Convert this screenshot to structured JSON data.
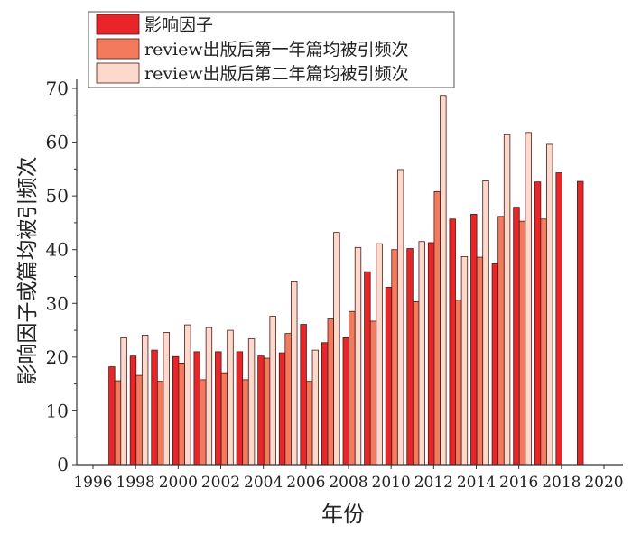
{
  "chart_data": {
    "type": "bar",
    "title": "",
    "xlabel": "年份",
    "ylabel": "影响因子或篇均被引频次",
    "xlim": [
      1996,
      2020
    ],
    "ylim": [
      0,
      70
    ],
    "xticks": [
      1996,
      1998,
      2000,
      2002,
      2004,
      2006,
      2008,
      2010,
      2012,
      2014,
      2016,
      2018,
      2020
    ],
    "yticks": [
      0,
      10,
      20,
      30,
      40,
      50,
      60,
      70
    ],
    "grid": false,
    "legend_position": "top-left",
    "x": [
      1997,
      1998,
      1999,
      2000,
      2001,
      2002,
      2003,
      2004,
      2005,
      2006,
      2007,
      2008,
      2009,
      2010,
      2011,
      2012,
      2013,
      2014,
      2015,
      2016,
      2017,
      2018,
      2019
    ],
    "series": [
      {
        "name": "影响因子",
        "color": "#e8262a",
        "values": [
          18.2,
          20.2,
          21.3,
          20.1,
          21.0,
          21.0,
          21.0,
          20.2,
          20.8,
          26.1,
          22.7,
          23.6,
          35.9,
          33.0,
          40.2,
          41.3,
          45.7,
          46.6,
          37.4,
          47.9,
          52.6,
          54.3,
          52.7
        ]
      },
      {
        "name": "review出版后第一年篇均被引频次",
        "color": "#f47a5e",
        "values": [
          15.6,
          16.6,
          15.5,
          18.9,
          15.8,
          17.1,
          15.8,
          19.8,
          24.4,
          15.5,
          27.1,
          28.5,
          26.7,
          40.0,
          30.3,
          50.8,
          30.6,
          38.6,
          46.2,
          45.3,
          45.7,
          null,
          null
        ]
      },
      {
        "name": "review出版后第二年篇均被引频次",
        "color": "#fcd9cc",
        "values": [
          23.6,
          24.1,
          24.6,
          26.0,
          25.5,
          25.0,
          23.4,
          27.6,
          34.0,
          21.3,
          43.2,
          40.4,
          41.1,
          54.9,
          41.5,
          68.7,
          38.7,
          52.8,
          61.4,
          61.8,
          59.6,
          null,
          null
        ]
      }
    ]
  }
}
